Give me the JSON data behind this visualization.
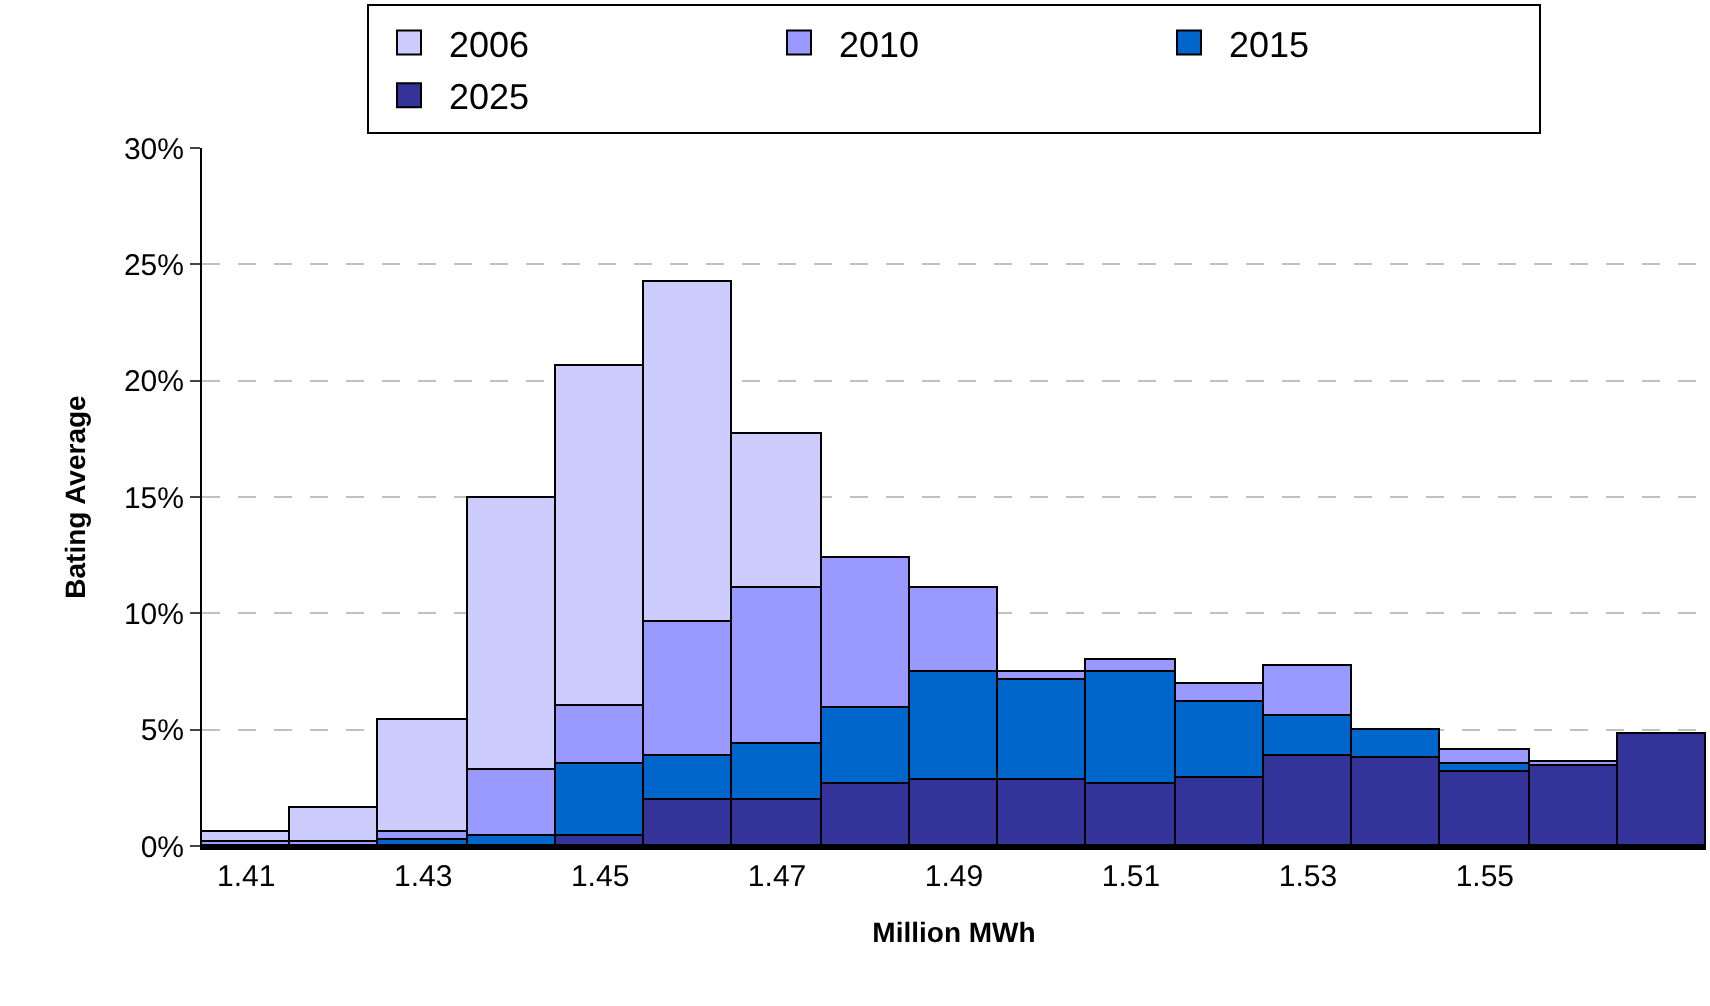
{
  "chart_data": {
    "type": "bar",
    "stacked": true,
    "xlabel": "Million MWh",
    "ylabel": "Bating Average",
    "categories": [
      "1.41",
      null,
      "1.43",
      null,
      "1.45",
      null,
      "1.47",
      null,
      "1.49",
      null,
      "1.51",
      null,
      "1.53",
      null,
      "1.55",
      null,
      null
    ],
    "series": [
      {
        "name": "2025",
        "color": "#333399",
        "values": [
          null,
          null,
          null,
          null,
          0.4,
          2.0,
          2.0,
          2.7,
          2.8,
          2.8,
          2.7,
          2.9,
          3.9,
          3.8,
          3.2,
          3.4,
          4.8
        ]
      },
      {
        "name": "2015",
        "color": "#0066cc",
        "values": [
          null,
          null,
          0.3,
          0.4,
          3.1,
          1.9,
          2.4,
          3.2,
          4.7,
          4.3,
          4.8,
          3.3,
          1.7,
          1.2,
          0.3,
          null,
          null
        ]
      },
      {
        "name": "2010",
        "color": "#9999ff",
        "values": [
          0.2,
          0.2,
          0.3,
          2.9,
          2.5,
          5.7,
          6.7,
          6.5,
          3.6,
          0.4,
          0.5,
          0.8,
          2.1,
          null,
          0.6,
          0.2,
          null
        ]
      },
      {
        "name": "2006",
        "color": "#ccccff",
        "values": [
          0.4,
          1.4,
          4.8,
          11.7,
          14.6,
          14.6,
          6.6,
          null,
          null,
          null,
          null,
          null,
          null,
          null,
          null,
          null,
          null
        ]
      }
    ],
    "ylim": [
      0,
      30
    ],
    "yticks": [
      {
        "value": 0,
        "label": "0%"
      },
      {
        "value": 5,
        "label": "5%"
      },
      {
        "value": 10,
        "label": "10%"
      },
      {
        "value": 15,
        "label": "15%"
      },
      {
        "value": 20,
        "label": "20%"
      },
      {
        "value": 25,
        "label": "25%"
      },
      {
        "value": 30,
        "label": "30%"
      }
    ],
    "grid": "y",
    "legend": "top"
  }
}
